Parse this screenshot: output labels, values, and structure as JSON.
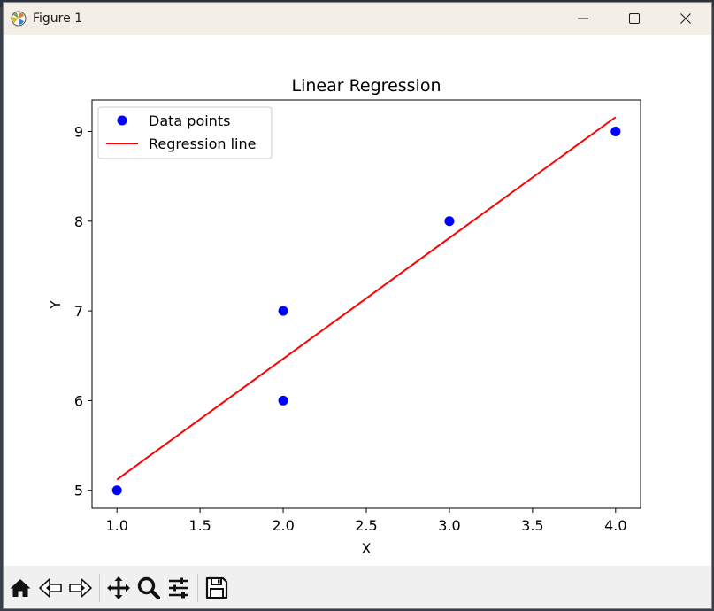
{
  "window": {
    "title": "Figure 1"
  },
  "toolbar": {
    "buttons": [
      {
        "icon": "home-icon"
      },
      {
        "icon": "back-icon"
      },
      {
        "icon": "forward-icon"
      },
      {
        "icon": "pan-icon"
      },
      {
        "icon": "zoom-icon"
      },
      {
        "icon": "configure-subplots-icon"
      },
      {
        "icon": "save-icon"
      }
    ]
  },
  "colors": {
    "points": "#0000ff",
    "line": "#ff0000"
  },
  "chart_data": {
    "type": "scatter",
    "title": "Linear Regression",
    "xlabel": "X",
    "ylabel": "Y",
    "xlim": [
      0.85,
      4.15
    ],
    "ylim": [
      4.8,
      9.35
    ],
    "xticks": [
      "1.0",
      "1.5",
      "2.0",
      "2.5",
      "3.0",
      "3.5",
      "4.0"
    ],
    "yticks": [
      "5",
      "6",
      "7",
      "8",
      "9"
    ],
    "grid": false,
    "legend_position": "upper-left",
    "series": [
      {
        "name": "Data points",
        "kind": "scatter",
        "color": "#0000ff",
        "x": [
          1,
          2,
          2,
          3,
          4
        ],
        "y": [
          5,
          6,
          7,
          8,
          9
        ]
      },
      {
        "name": "Regression line",
        "kind": "line",
        "color": "#ff0000",
        "x": [
          1,
          4
        ],
        "y": [
          5.12,
          9.16
        ]
      }
    ]
  }
}
